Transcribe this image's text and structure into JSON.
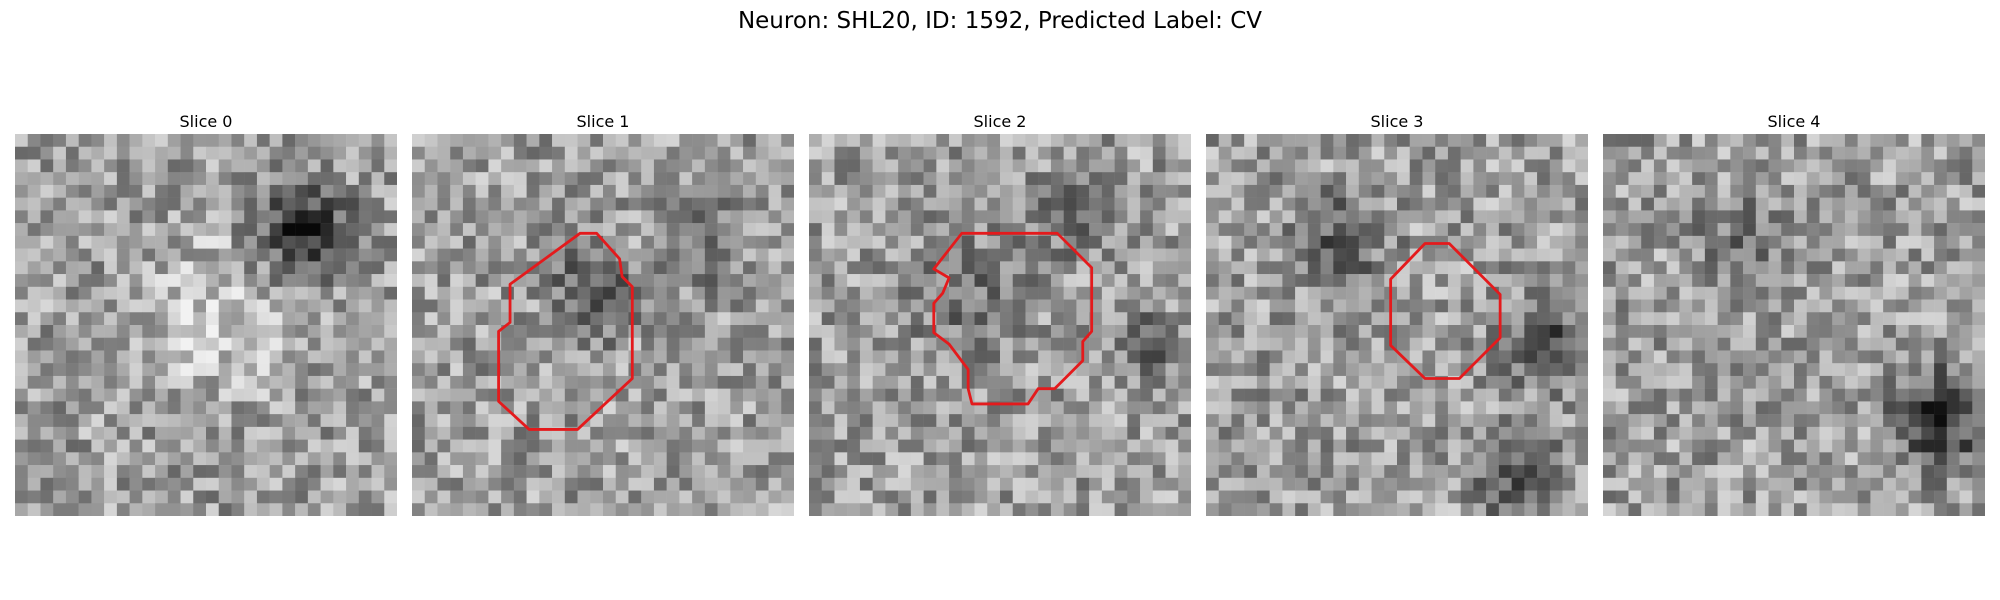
{
  "figure": {
    "title": "Neuron: SHL20, ID: 1592, Predicted Label: CV",
    "contour_color": "#e41a1c"
  },
  "panels": [
    {
      "title": "Slice 0",
      "seed": 11,
      "has_contour": false
    },
    {
      "title": "Slice 1",
      "seed": 23,
      "has_contour": true
    },
    {
      "title": "Slice 2",
      "seed": 37,
      "has_contour": true
    },
    {
      "title": "Slice 3",
      "seed": 53,
      "has_contour": true
    },
    {
      "title": "Slice 4",
      "seed": 71,
      "has_contour": false
    }
  ]
}
